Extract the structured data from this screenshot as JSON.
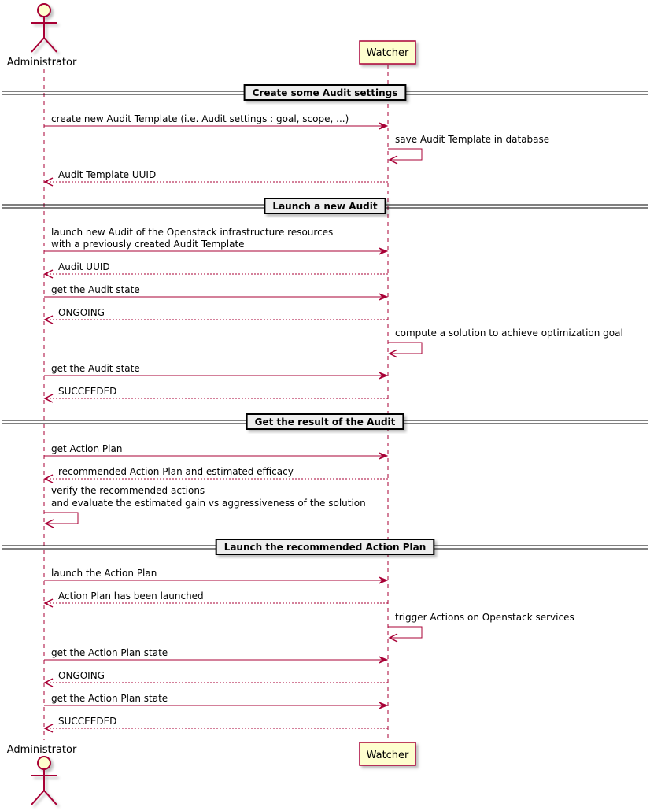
{
  "participants": {
    "administrator": {
      "label": "Administrator",
      "type": "actor"
    },
    "watcher": {
      "label": "Watcher",
      "type": "participant"
    }
  },
  "colors": {
    "line": "#A80036",
    "fill": "#FEFECE",
    "divider_fill": "#EEEEEE"
  },
  "steps": [
    {
      "kind": "divider",
      "label": "Create some Audit settings"
    },
    {
      "kind": "call",
      "from": "administrator",
      "to": "watcher",
      "lines": [
        "create new Audit Template (i.e. Audit settings : goal, scope, ...)"
      ]
    },
    {
      "kind": "self",
      "on": "watcher",
      "lines": [
        "save Audit Template in database"
      ]
    },
    {
      "kind": "return",
      "from": "watcher",
      "to": "administrator",
      "lines": [
        "Audit Template UUID"
      ]
    },
    {
      "kind": "divider",
      "label": "Launch a new Audit"
    },
    {
      "kind": "call",
      "from": "administrator",
      "to": "watcher",
      "lines": [
        "launch new Audit of the Openstack infrastructure resources",
        "with a previously created Audit Template"
      ]
    },
    {
      "kind": "return",
      "from": "watcher",
      "to": "administrator",
      "lines": [
        "Audit UUID"
      ]
    },
    {
      "kind": "call",
      "from": "administrator",
      "to": "watcher",
      "lines": [
        "get the Audit state"
      ]
    },
    {
      "kind": "return",
      "from": "watcher",
      "to": "administrator",
      "lines": [
        "ONGOING"
      ]
    },
    {
      "kind": "self",
      "on": "watcher",
      "lines": [
        "compute a solution to achieve optimization goal"
      ]
    },
    {
      "kind": "call",
      "from": "administrator",
      "to": "watcher",
      "lines": [
        "get the Audit state"
      ]
    },
    {
      "kind": "return",
      "from": "watcher",
      "to": "administrator",
      "lines": [
        "SUCCEEDED"
      ]
    },
    {
      "kind": "divider",
      "label": "Get the result of the Audit"
    },
    {
      "kind": "call",
      "from": "administrator",
      "to": "watcher",
      "lines": [
        "get Action Plan"
      ]
    },
    {
      "kind": "return",
      "from": "watcher",
      "to": "administrator",
      "lines": [
        "recommended Action Plan and estimated efficacy"
      ]
    },
    {
      "kind": "self",
      "on": "administrator",
      "lines": [
        "verify the recommended actions",
        "and evaluate the estimated gain vs aggressiveness of the solution"
      ]
    },
    {
      "kind": "divider",
      "label": "Launch the recommended Action Plan"
    },
    {
      "kind": "call",
      "from": "administrator",
      "to": "watcher",
      "lines": [
        "launch the Action Plan"
      ]
    },
    {
      "kind": "return",
      "from": "watcher",
      "to": "administrator",
      "lines": [
        "Action Plan has been launched"
      ]
    },
    {
      "kind": "self",
      "on": "watcher",
      "lines": [
        "trigger Actions on Openstack services"
      ]
    },
    {
      "kind": "call",
      "from": "administrator",
      "to": "watcher",
      "lines": [
        "get the Action Plan state"
      ]
    },
    {
      "kind": "return",
      "from": "watcher",
      "to": "administrator",
      "lines": [
        "ONGOING"
      ]
    },
    {
      "kind": "call",
      "from": "administrator",
      "to": "watcher",
      "lines": [
        "get the Action Plan state"
      ]
    },
    {
      "kind": "return",
      "from": "watcher",
      "to": "administrator",
      "lines": [
        "SUCCEEDED"
      ]
    }
  ]
}
